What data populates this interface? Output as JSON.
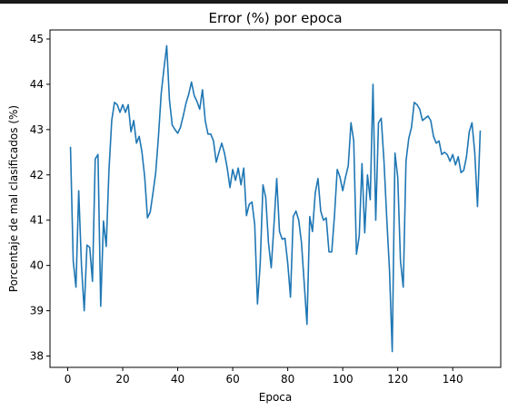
{
  "chart_data": {
    "type": "line",
    "title": "Error (%) por epoca",
    "xlabel": "Epoca",
    "ylabel": "Porcentaje de mal clasificados (%)",
    "xlim": [
      -6.45,
      157.45
    ],
    "ylim": [
      37.75,
      45.2
    ],
    "xticks": [
      0,
      20,
      40,
      60,
      80,
      100,
      120,
      140
    ],
    "yticks": [
      38,
      39,
      40,
      41,
      42,
      43,
      44,
      45
    ],
    "grid": false,
    "line_color": "#1f77b4",
    "series": [
      {
        "x": [
          1,
          2,
          3,
          4,
          5,
          6,
          7,
          8,
          9,
          10,
          11,
          12,
          13,
          14,
          15,
          16,
          17,
          18,
          19,
          20,
          21,
          22,
          23,
          24,
          25,
          26,
          27,
          28,
          29,
          30,
          31,
          32,
          33,
          34,
          35,
          36,
          37,
          38,
          39,
          40,
          41,
          42,
          43,
          44,
          45,
          46,
          47,
          48,
          49,
          50,
          51,
          52,
          53,
          54,
          55,
          56,
          57,
          58,
          59,
          60,
          61,
          62,
          63,
          64,
          65,
          66,
          67,
          68,
          69,
          70,
          71,
          72,
          73,
          74,
          75,
          76,
          77,
          78,
          79,
          80,
          81,
          82,
          83,
          84,
          85,
          86,
          87,
          88,
          89,
          90,
          91,
          92,
          93,
          94,
          95,
          96,
          97,
          98,
          99,
          100,
          101,
          102,
          103,
          104,
          105,
          106,
          107,
          108,
          109,
          110,
          111,
          112,
          113,
          114,
          115,
          116,
          117,
          118,
          119,
          120,
          121,
          122,
          123,
          124,
          125,
          126,
          127,
          128,
          129,
          130,
          131,
          132,
          133,
          134,
          135,
          136,
          137,
          138,
          139,
          140,
          141,
          142,
          143,
          144,
          145,
          146,
          147,
          148,
          149,
          150
        ],
        "values": [
          42.62,
          40.1,
          39.52,
          41.65,
          40.0,
          39.0,
          40.45,
          40.4,
          39.65,
          42.35,
          42.45,
          39.1,
          40.98,
          40.42,
          42.1,
          43.2,
          43.6,
          43.55,
          43.38,
          43.55,
          43.38,
          43.55,
          42.95,
          43.2,
          42.7,
          42.85,
          42.5,
          41.95,
          41.05,
          41.18,
          41.6,
          42.05,
          42.85,
          43.8,
          44.35,
          44.85,
          43.65,
          43.1,
          43.0,
          42.92,
          43.05,
          43.3,
          43.58,
          43.78,
          44.05,
          43.75,
          43.62,
          43.45,
          43.88,
          43.2,
          42.9,
          42.9,
          42.75,
          42.28,
          42.5,
          42.7,
          42.48,
          42.15,
          41.72,
          42.12,
          41.88,
          42.15,
          41.78,
          42.15,
          41.1,
          41.35,
          41.4,
          40.9,
          39.15,
          40.05,
          41.78,
          41.5,
          40.5,
          39.95,
          40.9,
          41.92,
          40.75,
          40.58,
          40.6,
          40.05,
          39.3,
          41.08,
          41.2,
          41.0,
          40.5,
          39.6,
          38.7,
          41.08,
          40.75,
          41.6,
          41.92,
          41.2,
          41.0,
          41.05,
          40.3,
          40.3,
          41.1,
          42.12,
          41.95,
          41.65,
          41.95,
          42.2,
          43.15,
          42.75,
          40.25,
          40.65,
          42.25,
          40.72,
          42.0,
          41.45,
          44.0,
          41.0,
          43.15,
          43.25,
          42.3,
          41.05,
          39.9,
          38.1,
          42.48,
          41.95,
          40.1,
          39.52,
          42.3,
          42.8,
          43.05,
          43.6,
          43.55,
          43.45,
          43.2,
          43.25,
          43.3,
          43.2,
          42.85,
          42.7,
          42.75,
          42.45,
          42.5,
          42.45,
          42.3,
          42.45,
          42.22,
          42.4,
          42.05,
          42.1,
          42.4,
          42.95,
          43.15,
          42.5,
          41.3,
          42.98
        ]
      }
    ]
  }
}
